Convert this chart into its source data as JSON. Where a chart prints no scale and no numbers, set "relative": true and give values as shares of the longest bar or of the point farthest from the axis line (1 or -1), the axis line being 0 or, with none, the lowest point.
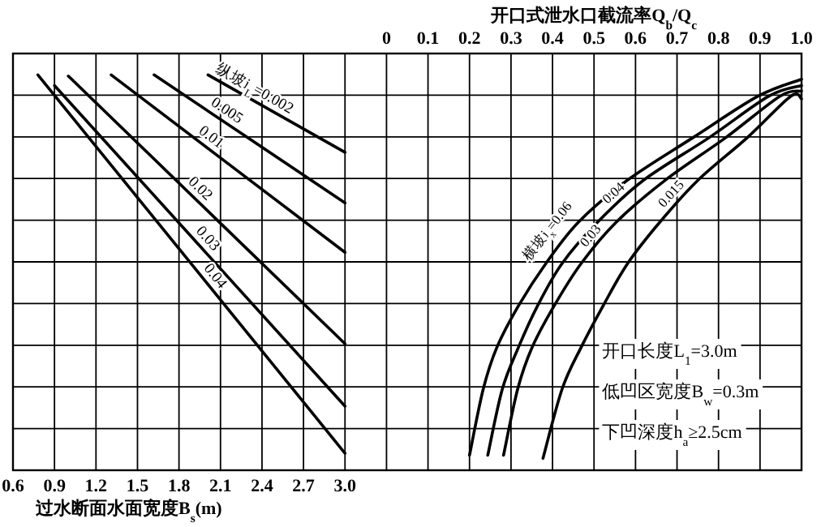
{
  "chart_data": {
    "type": "line",
    "relative": true,
    "grid": true,
    "line_style": "solid",
    "xlabel": "过水断面水面宽度B$_{s}$(m)",
    "x2label": "开口式泄水口截流率Q$_{b}$/Q$_{c}$",
    "xlim": [
      0.6,
      6.3
    ],
    "xticks": [
      0.6,
      0.9,
      1.2,
      1.5,
      1.8,
      2.1,
      2.4,
      2.7,
      {
        "value": 3.0,
        "label": "3.0"
      }
    ],
    "x2lim": [
      -0.9,
      1.0
    ],
    "x2ticks": [
      0,
      0.1,
      0.2,
      0.3,
      0.4,
      0.5,
      0.6,
      0.7,
      0.8,
      0.9,
      {
        "value": 1.0,
        "label": "1.0"
      }
    ],
    "series": [
      {
        "name": "纵坡i$_{L}$=0.002",
        "color": "#000000",
        "x": [
          2.01,
          3.0
        ],
        "values": [
          1.0,
          0.804
        ]
      },
      {
        "name": "0.005",
        "color": "#000000",
        "x": [
          1.62,
          3.0
        ],
        "values": [
          1.0,
          0.676
        ]
      },
      {
        "name": "0.01",
        "color": "#000000",
        "x": [
          1.31,
          3.0
        ],
        "values": [
          1.0,
          0.551
        ]
      },
      {
        "name": "0.02",
        "color": "#000000",
        "x": [
          1.0,
          3.0
        ],
        "values": [
          0.997,
          0.32
        ]
      },
      {
        "name": "0.03",
        "color": "#000000",
        "x": [
          0.9,
          3.0
        ],
        "values": [
          0.973,
          0.162
        ]
      },
      {
        "name": "0.04",
        "color": "#000000",
        "x": [
          0.78,
          3.0
        ],
        "values": [
          1.0,
          0.043
        ]
      },
      {
        "name": "横坡i$_{x}$=0.06",
        "color": "#000000",
        "axis": "x2",
        "x": [
          0.2,
          0.233,
          0.266,
          0.318,
          0.384,
          0.463,
          0.581,
          0.738,
          0.895,
          1.0
        ],
        "values": [
          0.038,
          0.205,
          0.311,
          0.416,
          0.523,
          0.628,
          0.734,
          0.841,
          0.946,
          0.989
        ]
      },
      {
        "name": "0.04",
        "color": "#000000",
        "axis": "x2",
        "x": [
          0.244,
          0.279,
          0.318,
          0.364,
          0.423,
          0.509,
          0.62,
          0.777,
          0.921,
          1.0
        ],
        "values": [
          0.038,
          0.205,
          0.311,
          0.416,
          0.523,
          0.628,
          0.734,
          0.841,
          0.946,
          0.973
        ]
      },
      {
        "name": "0.03",
        "color": "#000000",
        "axis": "x2",
        "x": [
          0.282,
          0.316,
          0.351,
          0.404,
          0.469,
          0.554,
          0.672,
          0.817,
          0.948,
          1.0
        ],
        "values": [
          0.038,
          0.205,
          0.311,
          0.416,
          0.523,
          0.628,
          0.734,
          0.841,
          0.946,
          0.959
        ]
      },
      {
        "name": "0.015",
        "color": "#000000",
        "axis": "x2",
        "x": [
          0.377,
          0.423,
          0.469,
          0.522,
          0.581,
          0.659,
          0.751,
          0.869,
          0.974,
          1.0
        ],
        "values": [
          0.03,
          0.205,
          0.311,
          0.416,
          0.523,
          0.628,
          0.734,
          0.841,
          0.946,
          0.939
        ]
      }
    ],
    "annotations": [
      "开口长度L$_{1}$=3.0m",
      "低凹区宽度B$_{w}$=0.3m",
      "下凹深度h$_{a}$≥2.5cm"
    ]
  }
}
